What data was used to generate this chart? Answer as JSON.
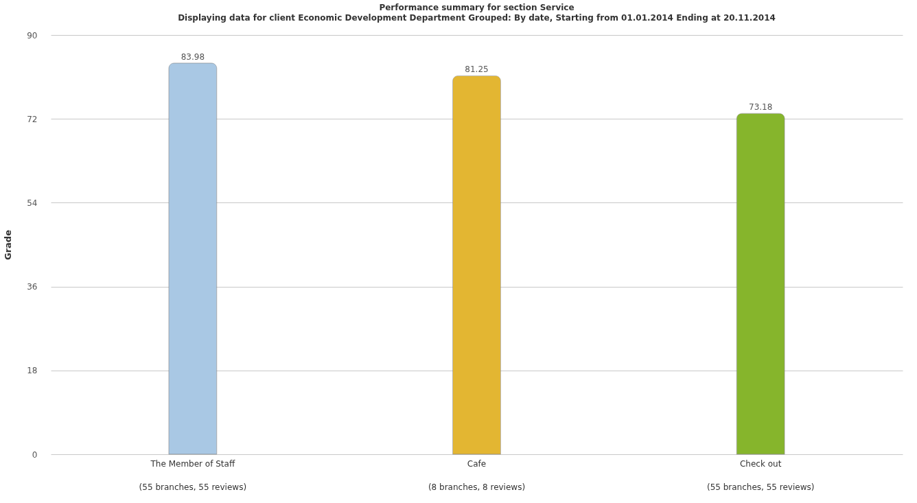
{
  "chart_data": {
    "type": "bar",
    "title": "Performance summary for section Service",
    "subtitle": "Displaying data for client Economic Development Department Grouped: By date, Starting from 01.01.2014 Ending at 20.11.2014",
    "ylabel": "Grade",
    "categories": [
      "The Member of Staff\n(55 branches, 55 reviews)",
      "Cafe\n(8 branches, 8 reviews)",
      "Check out\n(55 branches, 55 reviews)"
    ],
    "values": [
      83.98,
      81.25,
      73.18
    ],
    "colors": [
      "#a9c8e4",
      "#e3b632",
      "#86b52c"
    ],
    "ylim": [
      0,
      90
    ],
    "yticks": [
      0,
      18,
      36,
      54,
      72,
      90
    ],
    "grid": "y",
    "data_labels": true
  }
}
